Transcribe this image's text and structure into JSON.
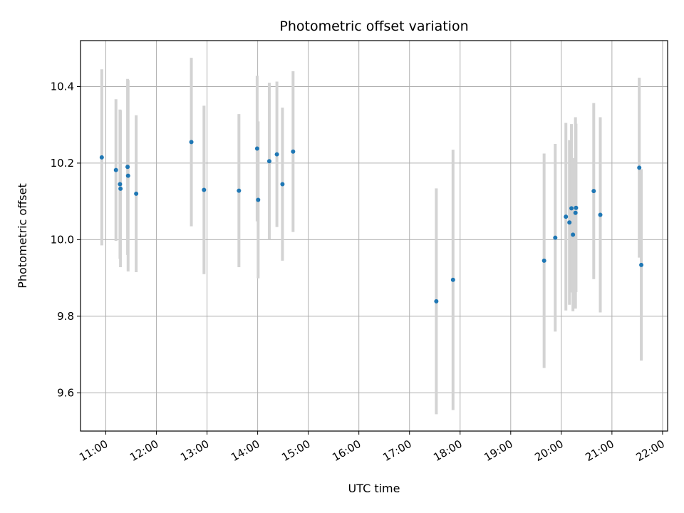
{
  "chart_data": {
    "type": "scatter",
    "title": "Photometric offset variation",
    "xlabel": "UTC time",
    "ylabel": "Photometric offset",
    "x_unit": "hours UTC",
    "xlim": [
      10.5,
      22.1
    ],
    "ylim": [
      9.5,
      10.52
    ],
    "x_ticks": [
      {
        "value": 11,
        "label": "11:00"
      },
      {
        "value": 12,
        "label": "12:00"
      },
      {
        "value": 13,
        "label": "13:00"
      },
      {
        "value": 14,
        "label": "14:00"
      },
      {
        "value": 15,
        "label": "15:00"
      },
      {
        "value": 16,
        "label": "16:00"
      },
      {
        "value": 17,
        "label": "17:00"
      },
      {
        "value": 18,
        "label": "18:00"
      },
      {
        "value": 19,
        "label": "19:00"
      },
      {
        "value": 20,
        "label": "20:00"
      },
      {
        "value": 21,
        "label": "21:00"
      },
      {
        "value": 22,
        "label": "22:00"
      }
    ],
    "y_ticks": [
      {
        "value": 9.6,
        "label": "9.6"
      },
      {
        "value": 9.8,
        "label": "9.8"
      },
      {
        "value": 10.0,
        "label": "10.0"
      },
      {
        "value": 10.2,
        "label": "10.2"
      },
      {
        "value": 10.4,
        "label": "10.4"
      }
    ],
    "grid": true,
    "marker_color": "#1f77b4",
    "errorbar_color": "#d3d3d3",
    "points": [
      {
        "x": 10.92,
        "y": 10.215,
        "err": 0.23
      },
      {
        "x": 11.2,
        "y": 10.182,
        "err": 0.185
      },
      {
        "x": 11.28,
        "y": 10.145,
        "err": 0.195
      },
      {
        "x": 11.29,
        "y": 10.133,
        "err": 0.205
      },
      {
        "x": 11.43,
        "y": 10.19,
        "err": 0.23
      },
      {
        "x": 11.44,
        "y": 10.167,
        "err": 0.25
      },
      {
        "x": 11.6,
        "y": 10.12,
        "err": 0.205
      },
      {
        "x": 12.69,
        "y": 10.255,
        "err": 0.22
      },
      {
        "x": 12.94,
        "y": 10.13,
        "err": 0.22
      },
      {
        "x": 13.63,
        "y": 10.128,
        "err": 0.2
      },
      {
        "x": 13.99,
        "y": 10.238,
        "err": 0.19
      },
      {
        "x": 14.01,
        "y": 10.104,
        "err": 0.205
      },
      {
        "x": 14.23,
        "y": 10.205,
        "err": 0.205
      },
      {
        "x": 14.38,
        "y": 10.223,
        "err": 0.19
      },
      {
        "x": 14.49,
        "y": 10.145,
        "err": 0.2
      },
      {
        "x": 14.7,
        "y": 10.23,
        "err": 0.21
      },
      {
        "x": 17.53,
        "y": 9.839,
        "err": 0.295
      },
      {
        "x": 17.86,
        "y": 9.895,
        "err": 0.34
      },
      {
        "x": 19.66,
        "y": 9.945,
        "err": 0.28
      },
      {
        "x": 19.88,
        "y": 10.005,
        "err": 0.245
      },
      {
        "x": 20.09,
        "y": 10.06,
        "err": 0.245
      },
      {
        "x": 20.16,
        "y": 10.045,
        "err": 0.215
      },
      {
        "x": 20.2,
        "y": 10.082,
        "err": 0.22
      },
      {
        "x": 20.23,
        "y": 10.013,
        "err": 0.2
      },
      {
        "x": 20.28,
        "y": 10.07,
        "err": 0.25
      },
      {
        "x": 20.29,
        "y": 10.083,
        "err": 0.22
      },
      {
        "x": 20.64,
        "y": 10.127,
        "err": 0.23
      },
      {
        "x": 20.77,
        "y": 10.065,
        "err": 0.255
      },
      {
        "x": 21.54,
        "y": 10.188,
        "err": 0.235
      },
      {
        "x": 21.58,
        "y": 9.934,
        "err": 0.25
      }
    ]
  }
}
